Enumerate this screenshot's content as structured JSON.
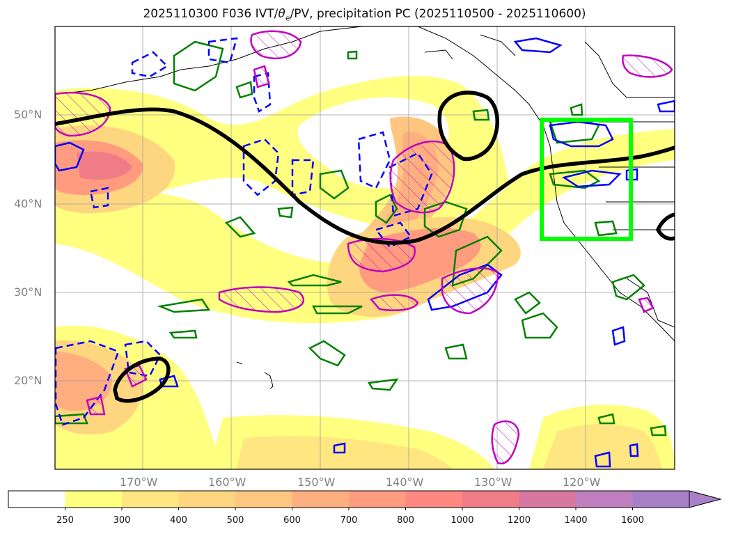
{
  "title": {
    "main": "2025110300 F036 IVT/",
    "theta": "θ",
    "sub": "e",
    "rest": "/PV, precipitation PC (2025110500 - 2025110600)"
  },
  "lat_labels": [
    "50°N",
    "40°N",
    "30°N",
    "20°N"
  ],
  "lon_labels": [
    "170°W",
    "160°W",
    "150°W",
    "140°W",
    "130°W",
    "120°W"
  ],
  "colorbar": {
    "levels": [
      "250",
      "300",
      "400",
      "500",
      "600",
      "700",
      "800",
      "1000",
      "1200",
      "1400",
      "1600"
    ],
    "colors": [
      "#ffffff",
      "#ffff80",
      "#ffe680",
      "#ffd680",
      "#ffc680",
      "#ffae80",
      "#ff9c80",
      "#ff8880",
      "#f07c88",
      "#d878a0",
      "#c080c0",
      "#a880c8"
    ]
  },
  "map_extent": {
    "lon": [
      -180,
      -110
    ],
    "lat": [
      10,
      60
    ]
  },
  "colors": {
    "ivt_contour": "#000000",
    "theta_e_pos": "#008000",
    "theta_e_neg": "#0000ff",
    "pv": "#c000c0",
    "highlight_box": "#00ff00",
    "coast": "#000000"
  }
}
